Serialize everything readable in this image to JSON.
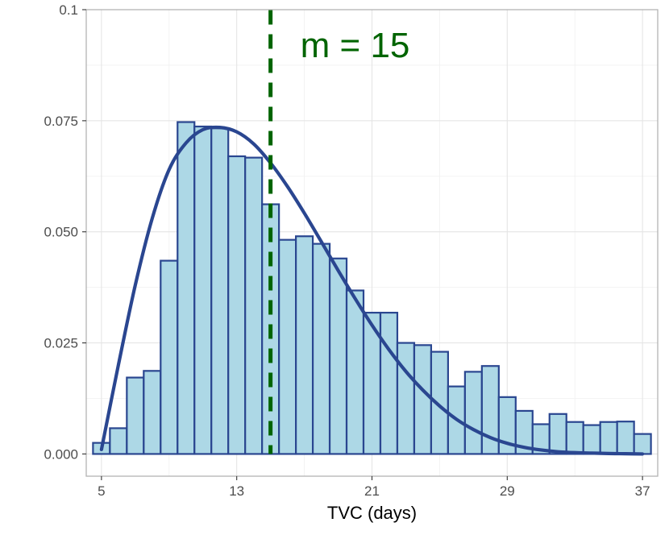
{
  "chart_data": {
    "type": "histogram",
    "title": "",
    "xlabel": "TVC (days)",
    "ylabel": "",
    "xlim": [
      4.1,
      37.9
    ],
    "ylim": [
      -0.005,
      0.1
    ],
    "x_ticks": [
      5,
      13,
      21,
      29,
      37
    ],
    "x_tick_labels": [
      "5",
      "13",
      "21",
      "29",
      "37"
    ],
    "y_ticks": [
      0,
      0.025,
      0.05,
      0.075,
      0.1
    ],
    "y_tick_labels": [
      "0.000",
      "0.025",
      "0.050",
      "0.075",
      "0.1"
    ],
    "grid": true,
    "bin_start": 4.5,
    "bin_width": 1,
    "values": [
      0.0025,
      0.0058,
      0.0172,
      0.0187,
      0.0435,
      0.0747,
      0.0737,
      0.0733,
      0.067,
      0.0667,
      0.0562,
      0.0482,
      0.049,
      0.0473,
      0.044,
      0.0368,
      0.0318,
      0.0318,
      0.025,
      0.0245,
      0.023,
      0.0152,
      0.0185,
      0.0198,
      0.0128,
      0.0097,
      0.0067,
      0.009,
      0.0072,
      0.0065,
      0.0072,
      0.0073,
      0.0045
    ],
    "curve": {
      "x": [
        5,
        6,
        7,
        8,
        9,
        10,
        11,
        12,
        13,
        14,
        15,
        16,
        17,
        18,
        19,
        20,
        21,
        22,
        23,
        24,
        25,
        26,
        27,
        28,
        29,
        30,
        31,
        32,
        33,
        34,
        35,
        36,
        37
      ],
      "y": [
        0.001,
        0.02,
        0.038,
        0.053,
        0.064,
        0.07,
        0.073,
        0.0735,
        0.0725,
        0.0698,
        0.0655,
        0.0602,
        0.0542,
        0.0478,
        0.0413,
        0.035,
        0.029,
        0.0235,
        0.0186,
        0.0144,
        0.0108,
        0.0078,
        0.0055,
        0.0037,
        0.0024,
        0.0015,
        0.0009,
        0.0005,
        0.0003,
        0.0002,
        0.0001,
        5e-05,
        0.0
      ]
    },
    "median_line": {
      "x": 15,
      "label": "m = 15"
    },
    "colors": {
      "bar_fill": "#add8e6",
      "bar_stroke": "#2a4690",
      "curve": "#2a4690",
      "median": "#006400",
      "grid": "#e5e5e5",
      "panel_border": "#b3b3b3"
    }
  }
}
